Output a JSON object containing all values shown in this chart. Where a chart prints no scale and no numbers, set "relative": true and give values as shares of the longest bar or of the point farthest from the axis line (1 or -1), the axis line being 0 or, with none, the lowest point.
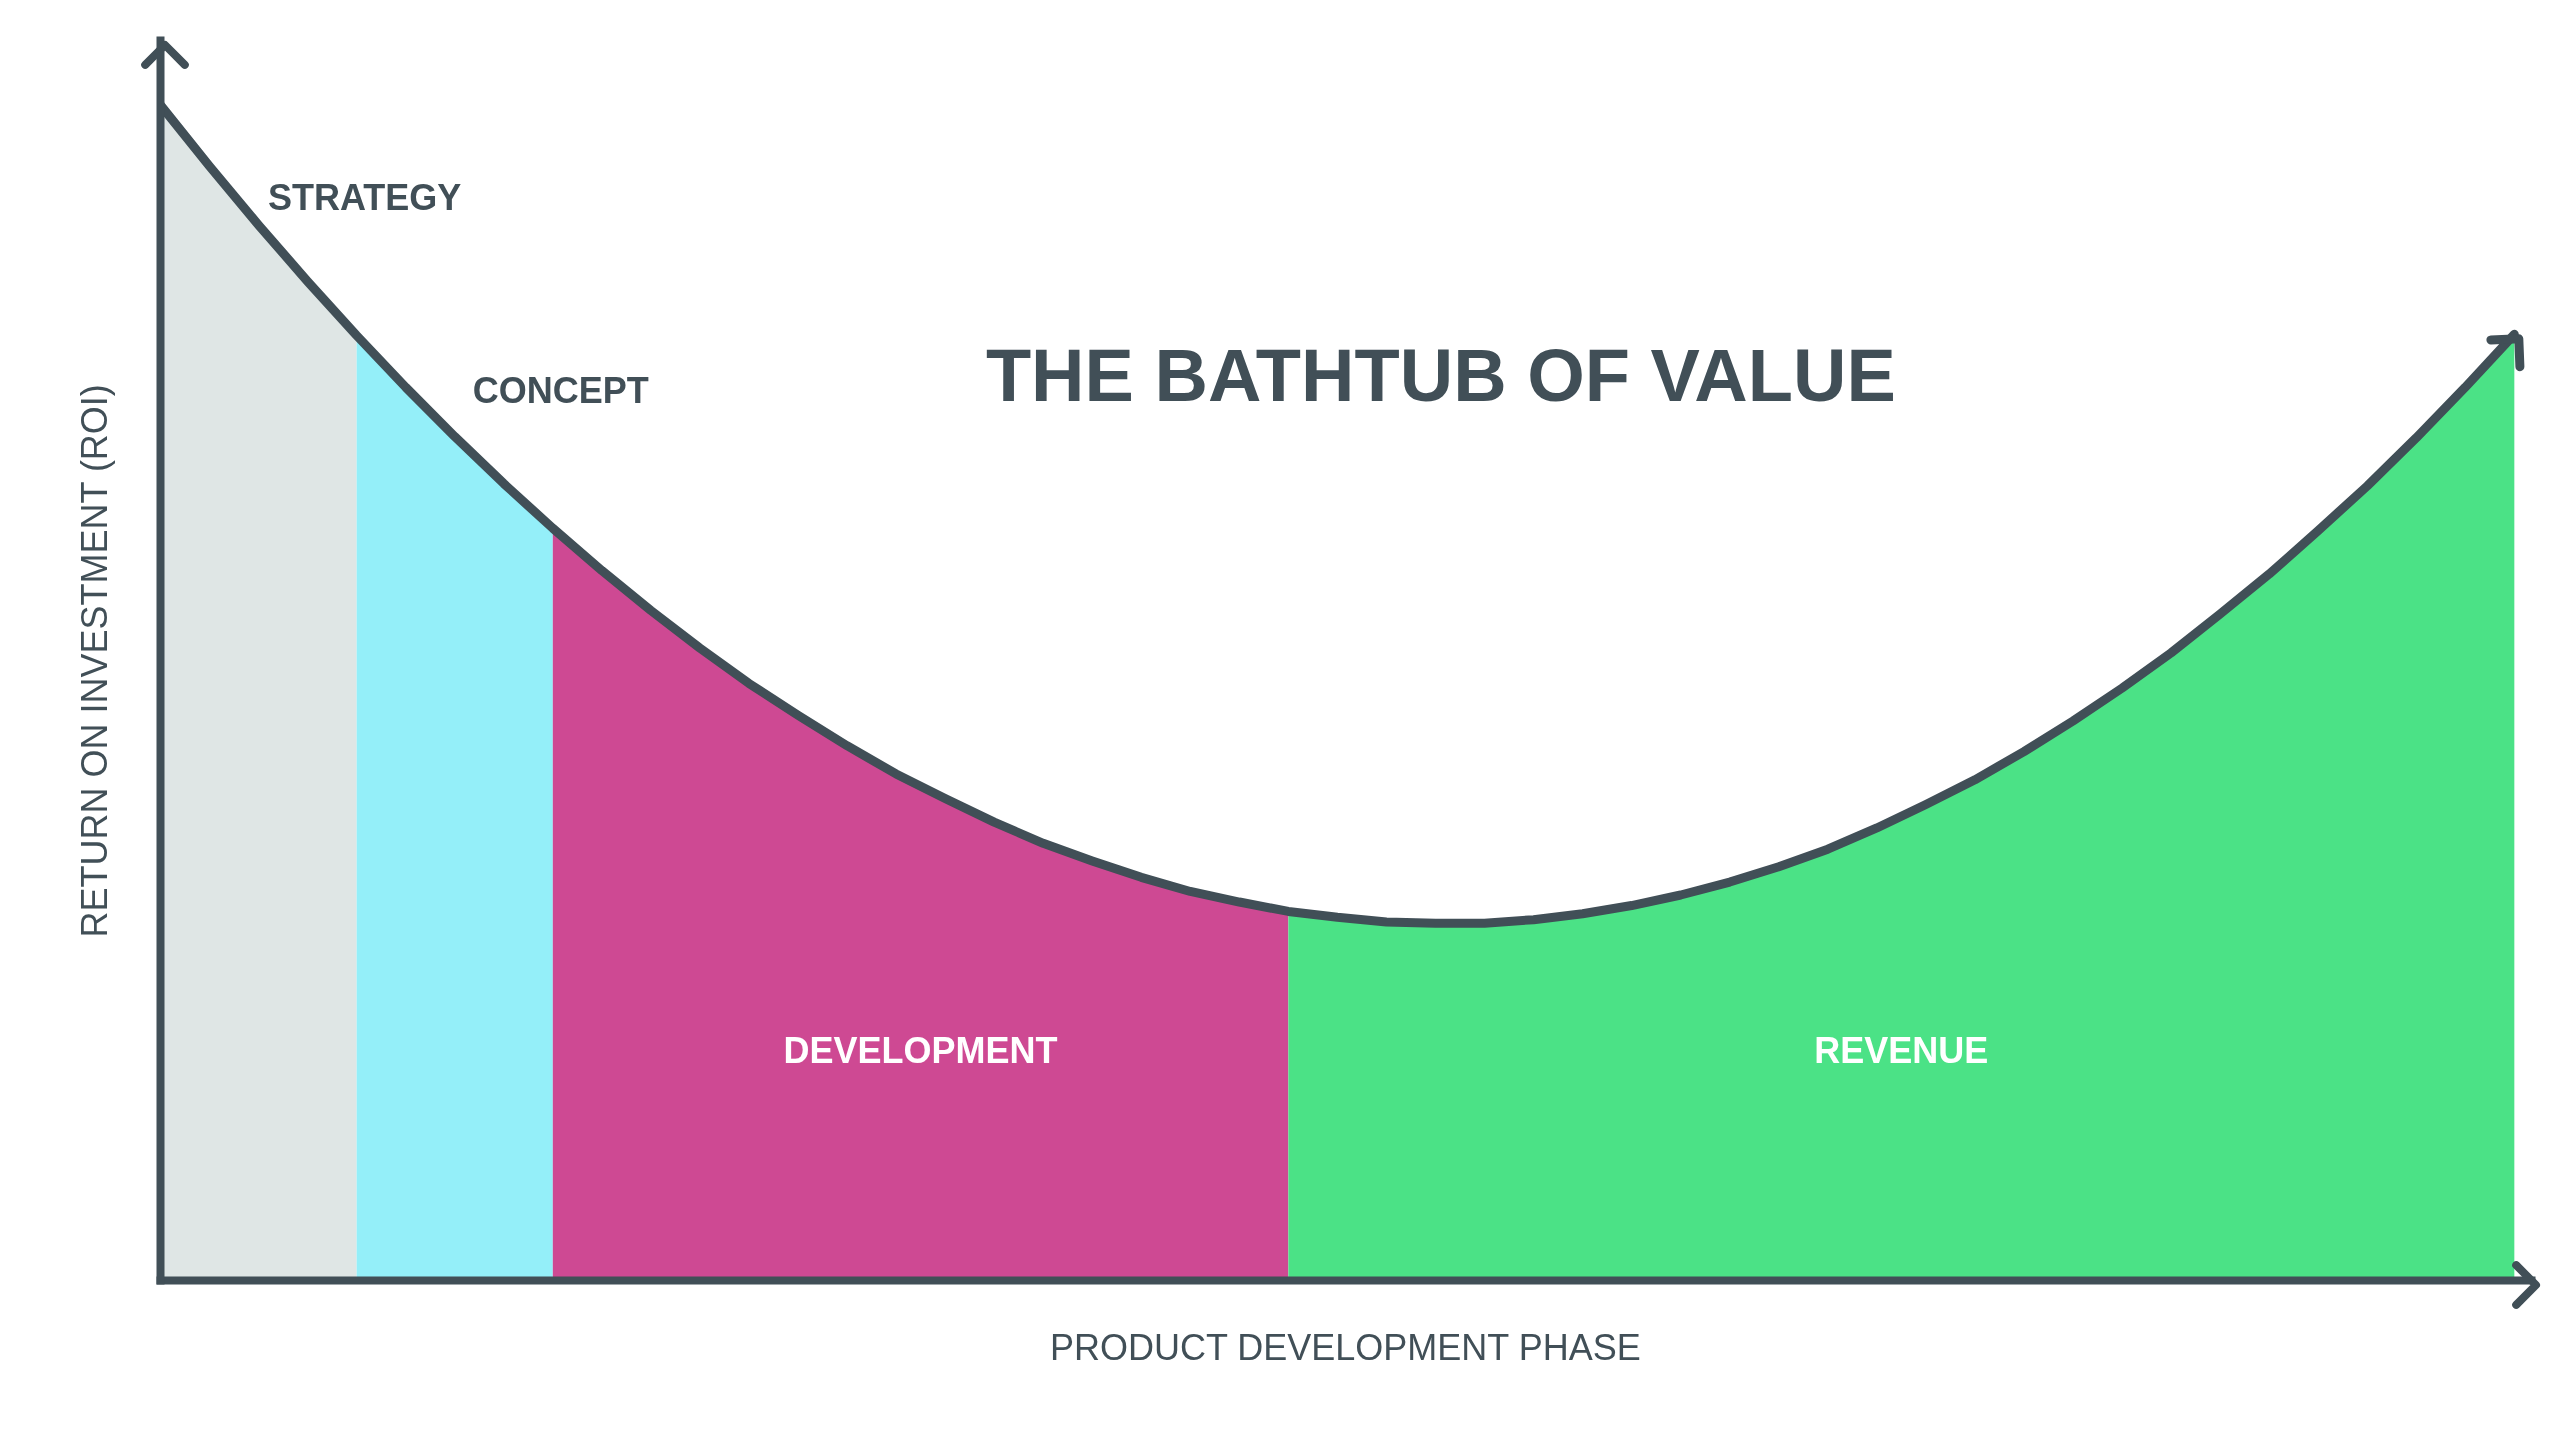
{
  "chart_data": {
    "type": "area",
    "title": "THE BATHTUB OF VALUE",
    "xlabel": "PRODUCT DEVELOPMENT PHASE",
    "ylabel": "RETURN ON INVESTMENT (ROI)",
    "relative": true,
    "categories": [
      null,
      null,
      null,
      null,
      null,
      null,
      null,
      null,
      null,
      null,
      null,
      null,
      null,
      null,
      null,
      null,
      null,
      null,
      null,
      null,
      null,
      null,
      null,
      null,
      null,
      null,
      null,
      null,
      null,
      null,
      null,
      null,
      null,
      null,
      null,
      null,
      null,
      null,
      null,
      null,
      null,
      null,
      null,
      null,
      null,
      null,
      null,
      null,
      null
    ],
    "series": [
      {
        "name": "STRATEGY",
        "color": "#dfe6e5",
        "values": [
          1.0,
          0.948,
          0.898,
          0.85,
          0.804,
          null,
          null,
          null,
          null,
          null,
          null,
          null,
          null,
          null,
          null,
          null,
          null,
          null,
          null,
          null,
          null,
          null,
          null,
          null,
          null,
          null,
          null,
          null,
          null,
          null,
          null,
          null,
          null,
          null,
          null,
          null,
          null,
          null,
          null,
          null,
          null,
          null,
          null,
          null,
          null,
          null,
          null,
          null,
          null
        ]
      },
      {
        "name": "CONCEPT",
        "color": "#94eff9",
        "values": [
          null,
          null,
          null,
          null,
          0.804,
          0.76,
          0.718,
          0.678,
          0.64,
          null,
          null,
          null,
          null,
          null,
          null,
          null,
          null,
          null,
          null,
          null,
          null,
          null,
          null,
          null,
          null,
          null,
          null,
          null,
          null,
          null,
          null,
          null,
          null,
          null,
          null,
          null,
          null,
          null,
          null,
          null,
          null,
          null,
          null,
          null,
          null,
          null,
          null,
          null,
          null
        ]
      },
      {
        "name": "DEVELOPMENT",
        "color": "#ce4993",
        "values": [
          null,
          null,
          null,
          null,
          null,
          null,
          null,
          null,
          0.64,
          0.604,
          0.57,
          0.538,
          0.508,
          0.481,
          0.455,
          0.431,
          0.41,
          0.39,
          0.372,
          0.357,
          0.343,
          0.331,
          0.322,
          0.314,
          null,
          null,
          null,
          null,
          null,
          null,
          null,
          null,
          null,
          null,
          null,
          null,
          null,
          null,
          null,
          null,
          null,
          null,
          null,
          null,
          null,
          null,
          null,
          null,
          null
        ]
      },
      {
        "name": "REVENUE",
        "color": "#4be286",
        "values": [
          null,
          null,
          null,
          null,
          null,
          null,
          null,
          null,
          null,
          null,
          null,
          null,
          null,
          null,
          null,
          null,
          null,
          null,
          null,
          null,
          null,
          null,
          null,
          0.314,
          0.309,
          0.305,
          0.304,
          0.304,
          0.307,
          0.312,
          0.319,
          0.328,
          0.339,
          0.352,
          0.367,
          0.385,
          0.405,
          0.426,
          0.45,
          0.476,
          0.504,
          0.534,
          0.567,
          0.601,
          0.638,
          0.676,
          0.717,
          0.76,
          0.805
        ]
      },
      {
        "type": "line",
        "color": "#414f57",
        "values": [
          1.0,
          0.948,
          0.898,
          0.85,
          0.804,
          0.76,
          0.718,
          0.678,
          0.64,
          0.604,
          0.57,
          0.538,
          0.508,
          0.481,
          0.455,
          0.431,
          0.41,
          0.39,
          0.372,
          0.357,
          0.343,
          0.331,
          0.322,
          0.314,
          0.309,
          0.305,
          0.304,
          0.304,
          0.307,
          0.312,
          0.319,
          0.328,
          0.339,
          0.352,
          0.367,
          0.385,
          0.405,
          0.426,
          0.45,
          0.476,
          0.504,
          0.534,
          0.567,
          0.601,
          0.638,
          0.676,
          0.717,
          0.76,
          0.805
        ]
      }
    ]
  }
}
